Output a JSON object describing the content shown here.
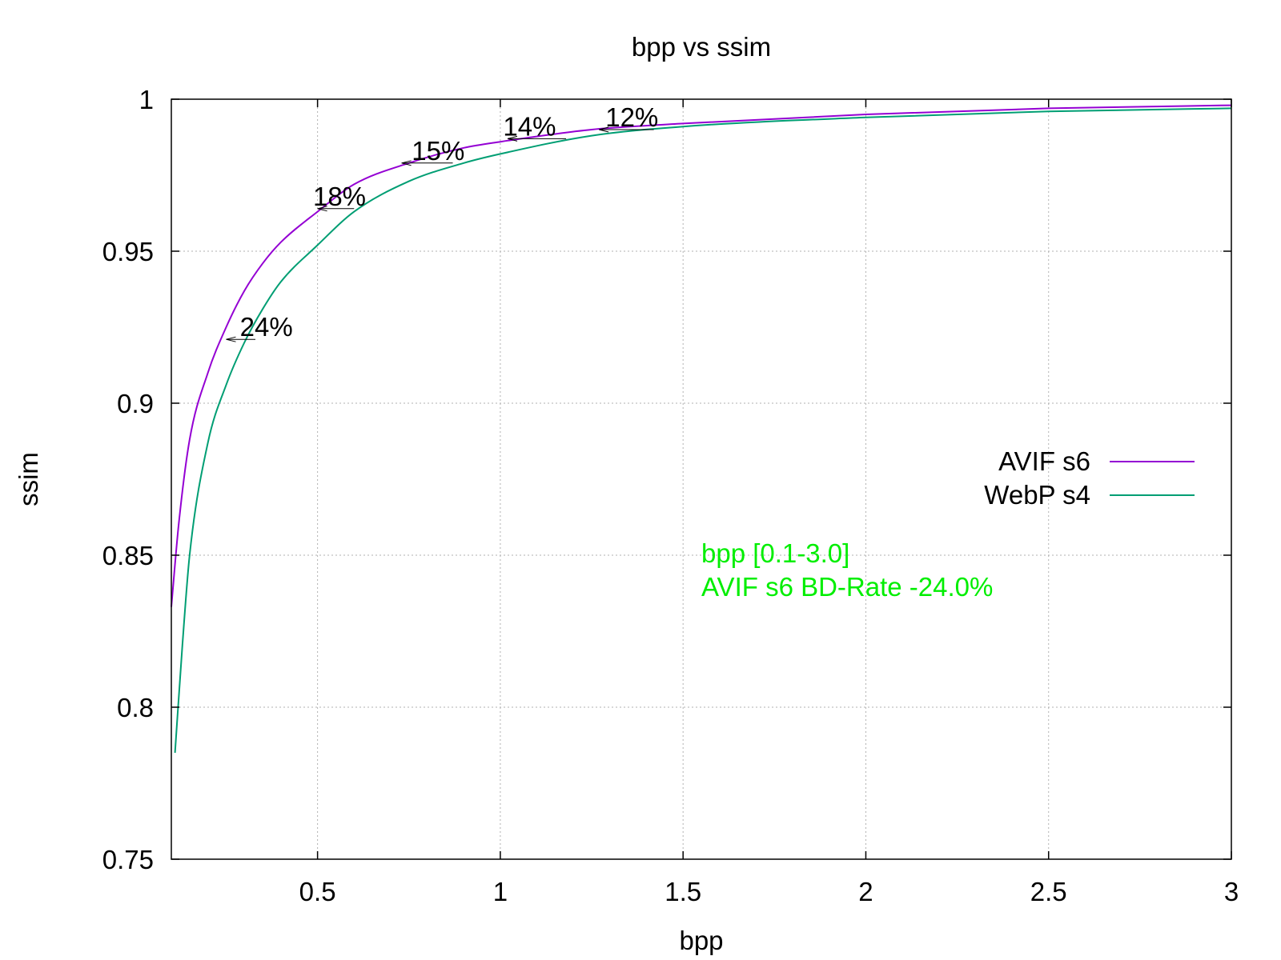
{
  "chart_data": {
    "type": "line",
    "title": "bpp vs ssim",
    "xlabel": "bpp",
    "ylabel": "ssim",
    "xlim": [
      0.1,
      3.0
    ],
    "ylim": [
      0.75,
      1.0
    ],
    "xticks": [
      0.5,
      1,
      1.5,
      2,
      2.5,
      3
    ],
    "xtick_labels": [
      "0.5",
      "1",
      "1.5",
      "2",
      "2.5",
      "3"
    ],
    "yticks": [
      0.75,
      0.8,
      0.85,
      0.9,
      0.95,
      1
    ],
    "ytick_labels": [
      "0.75",
      "0.8",
      "0.85",
      "0.9",
      "0.95",
      "1"
    ],
    "grid": true,
    "legend_position": "right",
    "series": [
      {
        "name": "AVIF s6",
        "color": "#9400d3",
        "x": [
          0.1,
          0.12,
          0.15,
          0.2,
          0.25,
          0.3,
          0.35,
          0.4,
          0.5,
          0.6,
          0.75,
          0.9,
          1.0,
          1.25,
          1.5,
          2.0,
          2.5,
          3.0
        ],
        "y": [
          0.833,
          0.86,
          0.888,
          0.91,
          0.925,
          0.937,
          0.946,
          0.953,
          0.963,
          0.972,
          0.979,
          0.984,
          0.986,
          0.99,
          0.992,
          0.995,
          0.997,
          0.998
        ]
      },
      {
        "name": "WebP s4",
        "color": "#009e73",
        "x": [
          0.11,
          0.13,
          0.15,
          0.2,
          0.25,
          0.3,
          0.35,
          0.4,
          0.5,
          0.6,
          0.75,
          0.9,
          1.0,
          1.25,
          1.5,
          2.0,
          2.5,
          3.0
        ],
        "y": [
          0.785,
          0.82,
          0.85,
          0.887,
          0.906,
          0.92,
          0.931,
          0.94,
          0.952,
          0.963,
          0.973,
          0.979,
          0.982,
          0.988,
          0.991,
          0.994,
          0.996,
          0.997
        ]
      }
    ],
    "annotations": [
      {
        "text": "24%",
        "x": 0.36,
        "y": 0.921,
        "arrow_from": 0.33,
        "arrow_to": 0.25
      },
      {
        "text": "18%",
        "x": 0.56,
        "y": 0.964,
        "arrow_from": 0.6,
        "arrow_to": 0.5
      },
      {
        "text": "15%",
        "x": 0.83,
        "y": 0.979,
        "arrow_from": 0.87,
        "arrow_to": 0.73
      },
      {
        "text": "14%",
        "x": 1.08,
        "y": 0.987,
        "arrow_from": 1.18,
        "arrow_to": 1.02
      },
      {
        "text": "12%",
        "x": 1.36,
        "y": 0.99,
        "arrow_from": 1.42,
        "arrow_to": 1.27
      }
    ],
    "notes": {
      "color": "#00ee00",
      "line1": "bpp [0.1-3.0]",
      "line2": "AVIF s6 BD-Rate -24.0%"
    }
  }
}
